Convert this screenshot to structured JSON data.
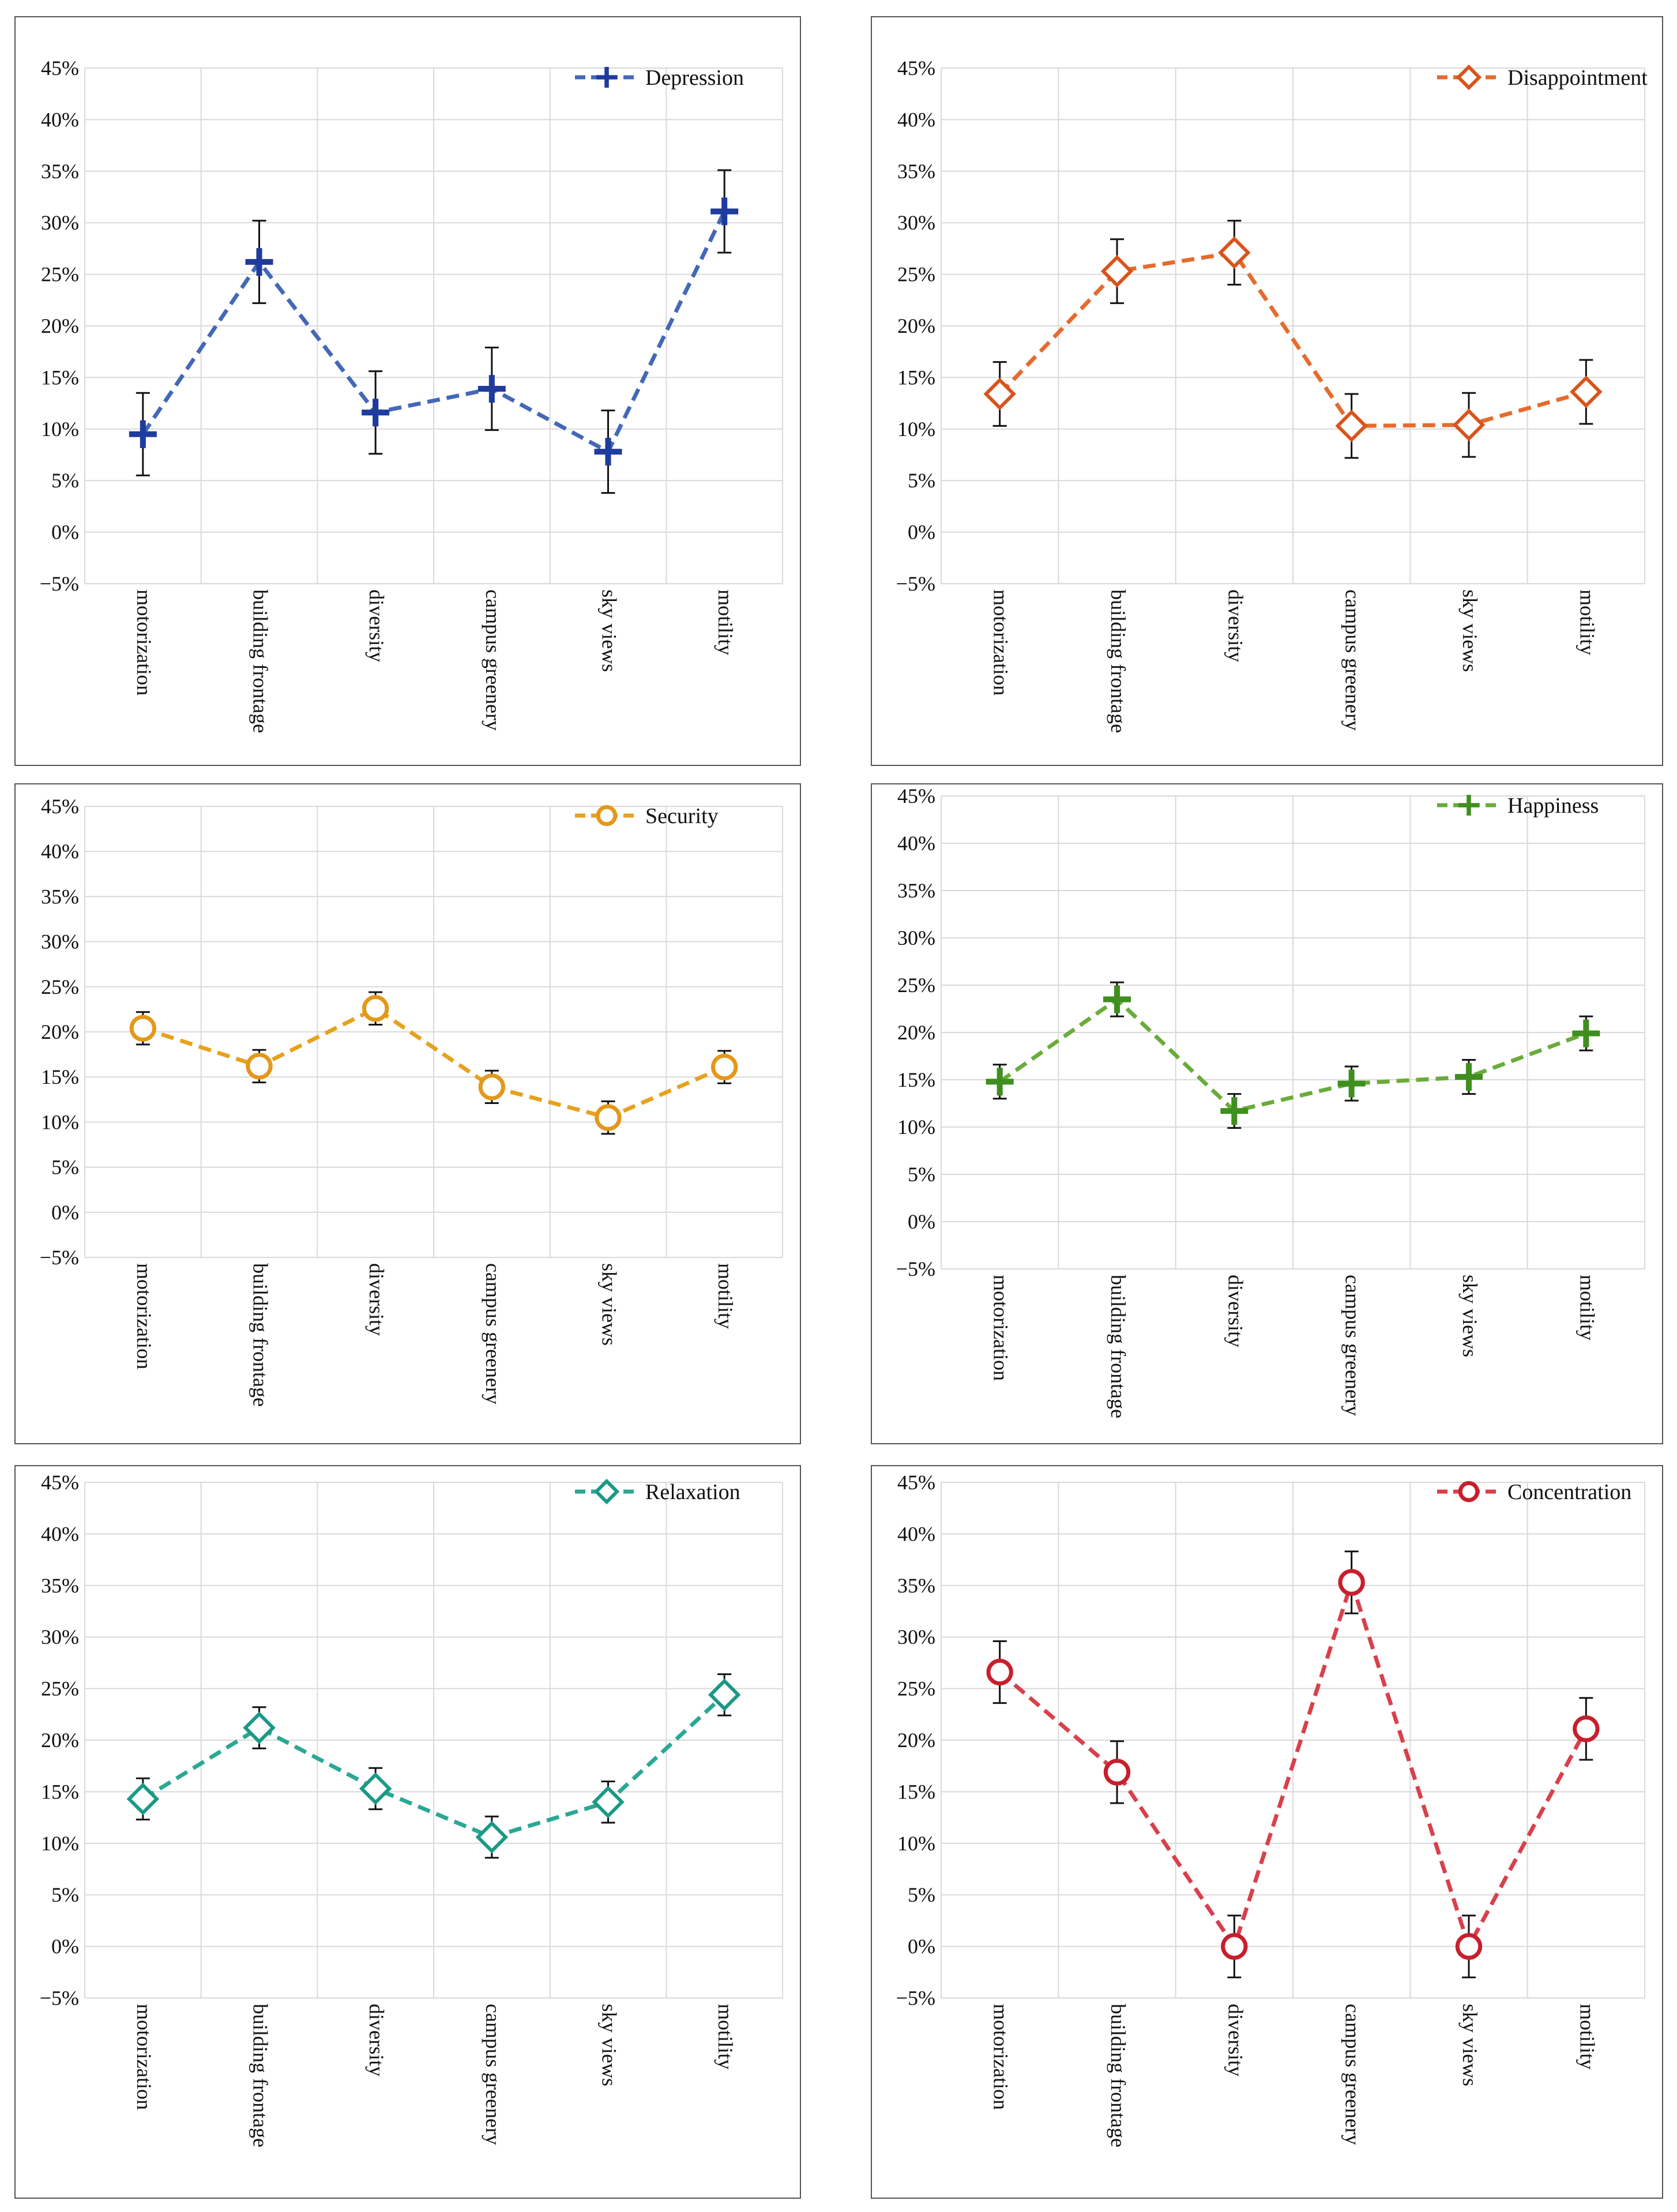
{
  "chart_data": [
    {
      "type": "line",
      "categories": [
        "motorization",
        "building frontage",
        "diversity",
        "campus greenery",
        "sky views",
        "motility"
      ],
      "ylim": [
        -5,
        45
      ],
      "yticks": [
        "45%",
        "40%",
        "35%",
        "30%",
        "25%",
        "20%",
        "15%",
        "10%",
        "5%",
        "0%",
        "−5%"
      ],
      "grid": true,
      "legend_position": "top-right",
      "series": [
        {
          "name": "Depression",
          "values": [
            9.5,
            26.2,
            11.6,
            13.9,
            7.8,
            31.1
          ],
          "error": 4.0,
          "color": "#4468b8",
          "marker_color": "#1f3b9e",
          "marker": "plus"
        }
      ]
    },
    {
      "type": "line",
      "categories": [
        "motorization",
        "building frontage",
        "diversity",
        "campus greenery",
        "sky views",
        "motility"
      ],
      "ylim": [
        -5,
        45
      ],
      "yticks": [
        "45%",
        "40%",
        "35%",
        "30%",
        "25%",
        "20%",
        "15%",
        "10%",
        "5%",
        "0%",
        "−5%"
      ],
      "grid": true,
      "legend_position": "top-right",
      "series": [
        {
          "name": "Disappointment",
          "values": [
            13.4,
            25.3,
            27.1,
            10.3,
            10.4,
            13.6
          ],
          "error": 3.1,
          "color": "#e56b2e",
          "marker_color": "#d9541c",
          "marker": "diamond"
        }
      ]
    },
    {
      "type": "line",
      "categories": [
        "motorization",
        "building frontage",
        "diversity",
        "campus greenery",
        "sky views",
        "motility"
      ],
      "ylim": [
        -5,
        45
      ],
      "yticks": [
        "45%",
        "40%",
        "35%",
        "30%",
        "25%",
        "20%",
        "15%",
        "10%",
        "5%",
        "0%",
        "−5%"
      ],
      "grid": true,
      "legend_position": "top-right",
      "series": [
        {
          "name": "Security",
          "values": [
            20.4,
            16.2,
            22.6,
            13.9,
            10.5,
            16.1
          ],
          "error": 1.8,
          "color": "#e6a21d",
          "marker_color": "#e3981a",
          "marker": "circle"
        }
      ]
    },
    {
      "type": "line",
      "categories": [
        "motorization",
        "building frontage",
        "diversity",
        "campus greenery",
        "sky views",
        "motility"
      ],
      "ylim": [
        -5,
        45
      ],
      "yticks": [
        "45%",
        "40%",
        "35%",
        "30%",
        "25%",
        "20%",
        "15%",
        "10%",
        "5%",
        "0%",
        "−5%"
      ],
      "grid": true,
      "legend_position": "top-right",
      "series": [
        {
          "name": "Happiness",
          "values": [
            14.8,
            23.5,
            11.7,
            14.6,
            15.3,
            19.9
          ],
          "error": 1.8,
          "color": "#6aac3a",
          "marker_color": "#3f8f1f",
          "marker": "plus"
        }
      ]
    },
    {
      "type": "line",
      "categories": [
        "motorization",
        "building frontage",
        "diversity",
        "campus greenery",
        "sky views",
        "motility"
      ],
      "ylim": [
        -5,
        45
      ],
      "yticks": [
        "45%",
        "40%",
        "35%",
        "30%",
        "25%",
        "20%",
        "15%",
        "10%",
        "5%",
        "0%",
        "−5%"
      ],
      "grid": true,
      "legend_position": "top-right",
      "series": [
        {
          "name": "Relaxation",
          "values": [
            14.3,
            21.2,
            15.3,
            10.6,
            14.0,
            24.4
          ],
          "error": 2.0,
          "color": "#2aa894",
          "marker_color": "#1a9985",
          "marker": "diamond"
        }
      ]
    },
    {
      "type": "line",
      "categories": [
        "motorization",
        "building frontage",
        "diversity",
        "campus greenery",
        "sky views",
        "motility"
      ],
      "ylim": [
        -5,
        45
      ],
      "yticks": [
        "45%",
        "40%",
        "35%",
        "30%",
        "25%",
        "20%",
        "15%",
        "10%",
        "5%",
        "0%",
        "−5%"
      ],
      "grid": true,
      "legend_position": "top-right",
      "series": [
        {
          "name": "Concentration",
          "values": [
            26.6,
            16.9,
            0.0,
            35.3,
            0.0,
            21.1
          ],
          "error": 3.0,
          "color": "#d8404c",
          "marker_color": "#c81f2d",
          "marker": "circle"
        }
      ]
    }
  ]
}
